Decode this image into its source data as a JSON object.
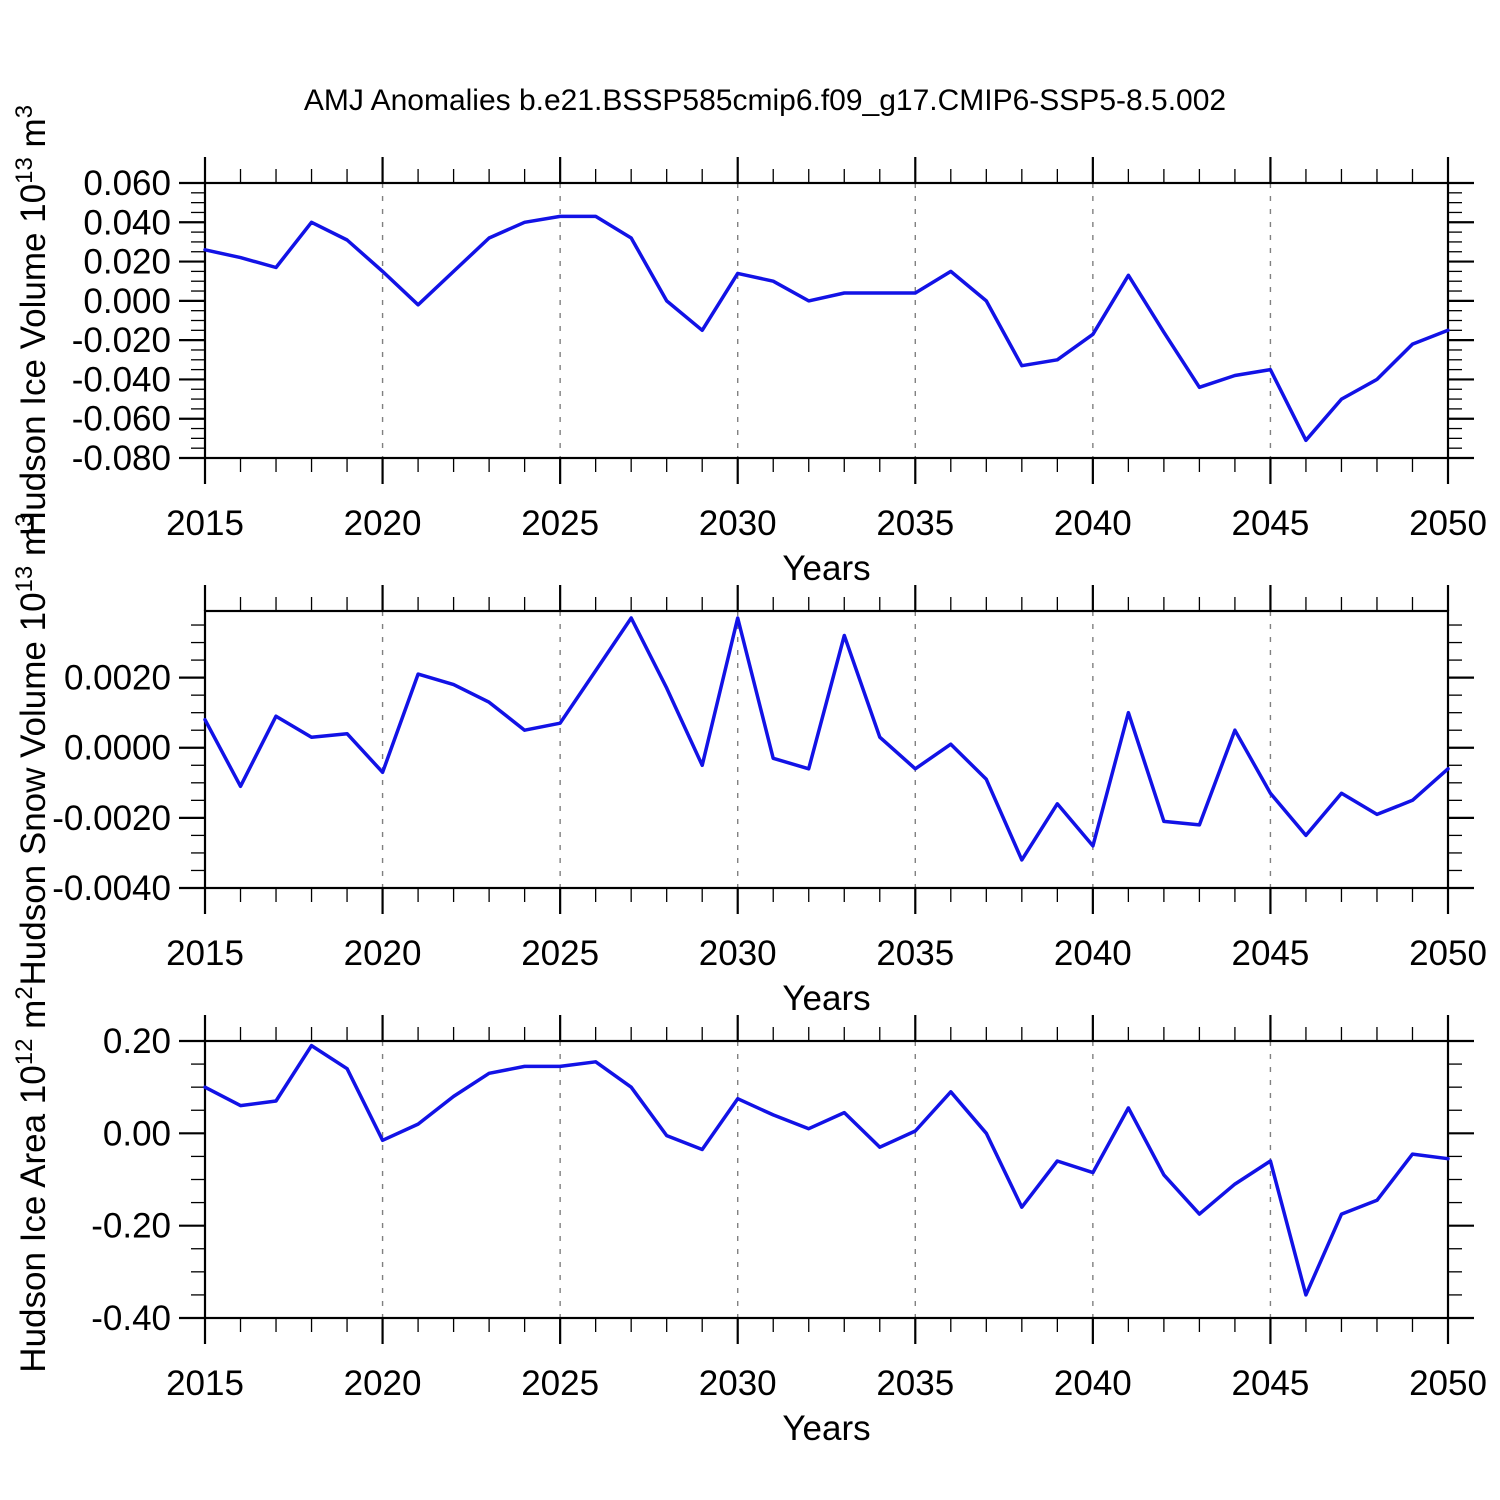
{
  "title": "AMJ Anomalies b.e21.BSSP585cmip6.f09_g17.CMIP6-SSP5-8.5.002",
  "line_color": "#1212e6",
  "gridline_color": "#808080",
  "axis_color": "#000000",
  "chart_data": [
    {
      "type": "line",
      "name": "ice-volume",
      "ylabel_plain": "Hudson Ice Volume 10^13 m^3",
      "ylabel_parts": [
        {
          "t": "Hudson Ice Volume 10",
          "sup": false
        },
        {
          "t": "13",
          "sup": true
        },
        {
          "t": " m",
          "sup": false
        },
        {
          "t": "3",
          "sup": true
        }
      ],
      "xlabel": "Years",
      "years": [
        2015,
        2016,
        2017,
        2018,
        2019,
        2020,
        2021,
        2022,
        2023,
        2024,
        2025,
        2026,
        2027,
        2028,
        2029,
        2030,
        2031,
        2032,
        2033,
        2034,
        2035,
        2036,
        2037,
        2038,
        2039,
        2040,
        2041,
        2042,
        2043,
        2044,
        2045,
        2046,
        2047,
        2048,
        2049,
        2050
      ],
      "values": [
        0.026,
        0.022,
        0.017,
        0.04,
        0.031,
        0.015,
        -0.002,
        0.015,
        0.032,
        0.04,
        0.043,
        0.043,
        0.032,
        0.0,
        -0.015,
        0.014,
        0.01,
        0.0,
        0.004,
        0.004,
        0.004,
        0.015,
        0.0,
        -0.033,
        -0.03,
        -0.017,
        0.013,
        -0.016,
        -0.044,
        -0.038,
        -0.035,
        -0.071,
        -0.05,
        -0.04,
        -0.022,
        -0.015
      ],
      "ylim": [
        -0.08,
        0.06
      ],
      "yticks": [
        0.06,
        0.04,
        0.02,
        0.0,
        -0.02,
        -0.04,
        -0.06,
        -0.08
      ],
      "ytick_labels": [
        "0.060",
        "0.040",
        "0.020",
        "0.000",
        "-0.020",
        "-0.040",
        "-0.060",
        "-0.080"
      ],
      "y_minor_step": 0.005,
      "xlim": [
        2015,
        2050
      ],
      "xticks": [
        2015,
        2020,
        2025,
        2030,
        2035,
        2040,
        2045,
        2050
      ],
      "xtick_labels": [
        "2015",
        "2020",
        "2025",
        "2030",
        "2035",
        "2040",
        "2045",
        "2050"
      ],
      "x_minor_step": 1,
      "grid_x_years": [
        2020,
        2025,
        2030,
        2035,
        2040,
        2045
      ],
      "grid_style": "vertical-dashed",
      "legend": "none"
    },
    {
      "type": "line",
      "name": "snow-volume",
      "ylabel_plain": "Hudson Snow Volume 10^13 m^3",
      "ylabel_parts": [
        {
          "t": "Hudson Snow Volume 10",
          "sup": false
        },
        {
          "t": "13",
          "sup": true
        },
        {
          "t": " m",
          "sup": false
        },
        {
          "t": "3",
          "sup": true
        }
      ],
      "xlabel": "Years",
      "years": [
        2015,
        2016,
        2017,
        2018,
        2019,
        2020,
        2021,
        2022,
        2023,
        2024,
        2025,
        2026,
        2027,
        2028,
        2029,
        2030,
        2031,
        2032,
        2033,
        2034,
        2035,
        2036,
        2037,
        2038,
        2039,
        2040,
        2041,
        2042,
        2043,
        2044,
        2045,
        2046,
        2047,
        2048,
        2049,
        2050
      ],
      "values": [
        0.0008,
        -0.0011,
        0.0009,
        0.0003,
        0.0004,
        -0.0007,
        0.0021,
        0.0018,
        0.0013,
        0.0005,
        0.0007,
        0.0022,
        0.0037,
        0.0017,
        -0.0005,
        0.0037,
        -0.0003,
        -0.0006,
        0.0032,
        0.0003,
        -0.0006,
        0.0001,
        -0.0009,
        -0.0032,
        -0.0016,
        -0.0028,
        0.001,
        -0.0021,
        -0.0022,
        0.0005,
        -0.0013,
        -0.0025,
        -0.0013,
        -0.0019,
        -0.0015,
        -0.0006
      ],
      "ylim": [
        -0.004,
        0.0039
      ],
      "yticks": [
        0.002,
        0.0,
        -0.002,
        -0.004
      ],
      "ytick_labels": [
        "0.0020",
        "0.0000",
        "-0.0020",
        "-0.0040"
      ],
      "y_minor_step": 0.0005,
      "xlim": [
        2015,
        2050
      ],
      "xticks": [
        2015,
        2020,
        2025,
        2030,
        2035,
        2040,
        2045,
        2050
      ],
      "xtick_labels": [
        "2015",
        "2020",
        "2025",
        "2030",
        "2035",
        "2040",
        "2045",
        "2050"
      ],
      "x_minor_step": 1,
      "grid_x_years": [
        2020,
        2025,
        2030,
        2035,
        2040,
        2045
      ],
      "grid_style": "vertical-dashed",
      "legend": "none"
    },
    {
      "type": "line",
      "name": "ice-area",
      "ylabel_plain": "Hudson Ice Area 10^12 m^2",
      "ylabel_parts": [
        {
          "t": "Hudson Ice Area 10",
          "sup": false
        },
        {
          "t": "12",
          "sup": true
        },
        {
          "t": " m",
          "sup": false
        },
        {
          "t": "2",
          "sup": true
        }
      ],
      "xlabel": "Years",
      "years": [
        2015,
        2016,
        2017,
        2018,
        2019,
        2020,
        2021,
        2022,
        2023,
        2024,
        2025,
        2026,
        2027,
        2028,
        2029,
        2030,
        2031,
        2032,
        2033,
        2034,
        2035,
        2036,
        2037,
        2038,
        2039,
        2040,
        2041,
        2042,
        2043,
        2044,
        2045,
        2046,
        2047,
        2048,
        2049,
        2050
      ],
      "values": [
        0.1,
        0.06,
        0.07,
        0.19,
        0.14,
        -0.015,
        0.02,
        0.08,
        0.13,
        0.145,
        0.145,
        0.155,
        0.1,
        -0.005,
        -0.035,
        0.075,
        0.04,
        0.01,
        0.045,
        -0.03,
        0.005,
        0.09,
        0.0,
        -0.16,
        -0.06,
        -0.085,
        0.055,
        -0.09,
        -0.175,
        -0.11,
        -0.06,
        -0.35,
        -0.175,
        -0.145,
        -0.045,
        -0.055
      ],
      "ylim": [
        -0.4,
        0.2
      ],
      "yticks": [
        0.2,
        0.0,
        -0.2,
        -0.4
      ],
      "ytick_labels": [
        "0.20",
        "0.00",
        "-0.20",
        "-0.40"
      ],
      "y_minor_step": 0.05,
      "xlim": [
        2015,
        2050
      ],
      "xticks": [
        2015,
        2020,
        2025,
        2030,
        2035,
        2040,
        2045,
        2050
      ],
      "xtick_labels": [
        "2015",
        "2020",
        "2025",
        "2030",
        "2035",
        "2040",
        "2045",
        "2050"
      ],
      "x_minor_step": 1,
      "grid_x_years": [
        2020,
        2025,
        2030,
        2035,
        2040,
        2045
      ],
      "grid_style": "vertical-dashed",
      "legend": "none"
    }
  ]
}
